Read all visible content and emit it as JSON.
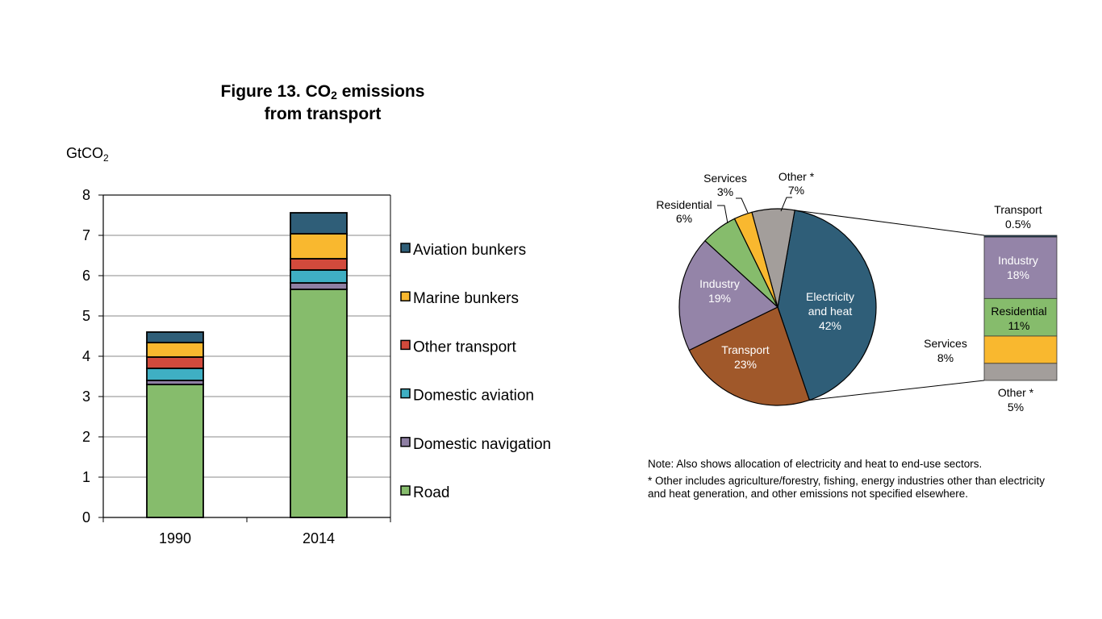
{
  "title": {
    "line1_prefix": "Figure 13. CO",
    "line1_sub": "2",
    "line1_suffix": " emissions",
    "line2": "from transport"
  },
  "unit": {
    "prefix": "GtCO",
    "sub": "2"
  },
  "notes": {
    "note": "Note: Also shows allocation of electricity and heat to end-use sectors.",
    "footnote": "* Other includes agriculture/forestry, fishing, energy industries other than electricity and heat generation, and other emissions not specified elsewhere."
  },
  "chart_data": [
    {
      "type": "bar",
      "stacked": true,
      "title": "Figure 13. CO2 emissions from transport",
      "ylabel": "GtCO2",
      "xlabel": "",
      "ylim": [
        0,
        8
      ],
      "yticks": [
        0,
        1,
        2,
        3,
        4,
        5,
        6,
        7,
        8
      ],
      "grid": true,
      "legend_position": "right",
      "categories": [
        "1990",
        "2014"
      ],
      "series": [
        {
          "name": "Road",
          "color": "#86bc6c",
          "values": [
            3.3,
            5.66
          ]
        },
        {
          "name": "Domestic navigation",
          "color": "#8e7fa3",
          "values": [
            0.1,
            0.16
          ]
        },
        {
          "name": "Domestic aviation",
          "color": "#3fafc3",
          "values": [
            0.3,
            0.32
          ]
        },
        {
          "name": "Other transport",
          "color": "#d24a3c",
          "values": [
            0.28,
            0.28
          ]
        },
        {
          "name": "Marine bunkers",
          "color": "#f9b82f",
          "values": [
            0.36,
            0.62
          ]
        },
        {
          "name": "Aviation bunkers",
          "color": "#2f5e78",
          "values": [
            0.26,
            0.52
          ]
        }
      ]
    },
    {
      "type": "pie",
      "title": "",
      "slices": [
        {
          "name": "Electricity and heat",
          "label_lines": [
            "Electricity",
            "and heat",
            "42%"
          ],
          "value": 42,
          "color": "#2f5e78",
          "label_color": "#ffffff"
        },
        {
          "name": "Transport",
          "label_lines": [
            "Transport",
            "23%"
          ],
          "value": 23,
          "color": "#a0582a",
          "label_color": "#ffffff"
        },
        {
          "name": "Industry",
          "label_lines": [
            "Industry",
            "19%"
          ],
          "value": 19,
          "color": "#9484a8",
          "label_color": "#ffffff"
        },
        {
          "name": "Residential",
          "label_lines": [
            "Residential",
            "6%"
          ],
          "value": 6,
          "color": "#86bc6c",
          "label_color": "#000000"
        },
        {
          "name": "Services",
          "label_lines": [
            "Services",
            "3%"
          ],
          "value": 3,
          "color": "#f9b82f",
          "label_color": "#000000"
        },
        {
          "name": "Other *",
          "label_lines": [
            "Other *",
            "7%"
          ],
          "value": 7,
          "color": "#a39e9b",
          "label_color": "#000000"
        }
      ],
      "breakdown": {
        "of": "Electricity and heat",
        "type": "stacked-bar",
        "segments": [
          {
            "name": "Transport",
            "label_lines": [
              "Transport",
              "0.5%"
            ],
            "value": 0.5,
            "color": "#1f3d52",
            "label_color": "#000000"
          },
          {
            "name": "Industry",
            "label_lines": [
              "Industry",
              "18%"
            ],
            "value": 18,
            "color": "#9484a8",
            "label_color": "#ffffff"
          },
          {
            "name": "Residential",
            "label_lines": [
              "Residential",
              "11%"
            ],
            "value": 11,
            "color": "#86bc6c",
            "label_color": "#000000"
          },
          {
            "name": "Services",
            "label_lines": [
              "Services",
              "8%"
            ],
            "value": 8,
            "color": "#f9b82f",
            "label_color": "#000000"
          },
          {
            "name": "Other *",
            "label_lines": [
              "Other *",
              "5%"
            ],
            "value": 5,
            "color": "#a39e9b",
            "label_color": "#000000"
          }
        ]
      }
    }
  ]
}
